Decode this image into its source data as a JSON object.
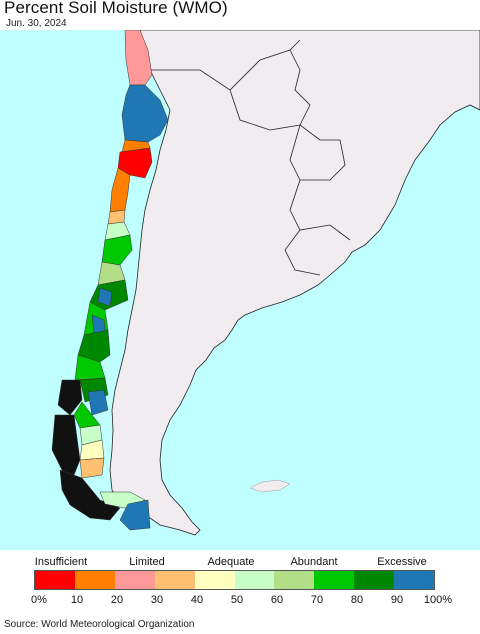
{
  "header": {
    "title": "Percent Soil Moisture (WMO)",
    "date": "Jun. 30, 2024"
  },
  "legend": {
    "categories": [
      {
        "label": "Insufficient"
      },
      {
        "label": "Limited"
      },
      {
        "label": "Adequate"
      },
      {
        "label": "Abundant"
      },
      {
        "label": "Excessive"
      }
    ],
    "colors": [
      "#ff0000",
      "#ff7f00",
      "#ff9999",
      "#ffc071",
      "#ffffbf",
      "#c8ffc8",
      "#b3de88",
      "#00c800",
      "#008700",
      "#1f78b4"
    ],
    "ticks": [
      "0%",
      "10",
      "20",
      "30",
      "40",
      "50",
      "60",
      "70",
      "80",
      "90",
      "100%"
    ]
  },
  "footer": {
    "source": "Source: World Meteorological Organization"
  },
  "map": {
    "ocean_color": "#bfffff",
    "land_color": "#f0ecf0"
  }
}
